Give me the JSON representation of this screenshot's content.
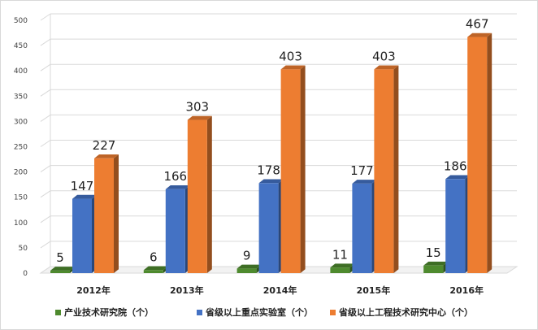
{
  "chart_data": {
    "type": "bar",
    "categories": [
      "2012年",
      "2013年",
      "2014年",
      "2015年",
      "2016年"
    ],
    "series": [
      {
        "name": "产业技术研究院（个）",
        "values": [
          5,
          6,
          9,
          11,
          15
        ],
        "color": "#4e8a2e"
      },
      {
        "name": "省级以上重点实验室（个）",
        "values": [
          147,
          166,
          178,
          177,
          186
        ],
        "color": "#4472c4"
      },
      {
        "name": "省级以上工程技术研究中心（个）",
        "values": [
          227,
          303,
          403,
          403,
          467
        ],
        "color": "#ed7d31"
      }
    ],
    "y_ticks": [
      "0",
      "50",
      "100",
      "150",
      "200",
      "250",
      "300",
      "350",
      "400",
      "450",
      "500"
    ],
    "ylim": [
      0,
      500
    ],
    "grid": true,
    "legend": "bottom",
    "title": "",
    "xlabel": "",
    "ylabel": ""
  }
}
